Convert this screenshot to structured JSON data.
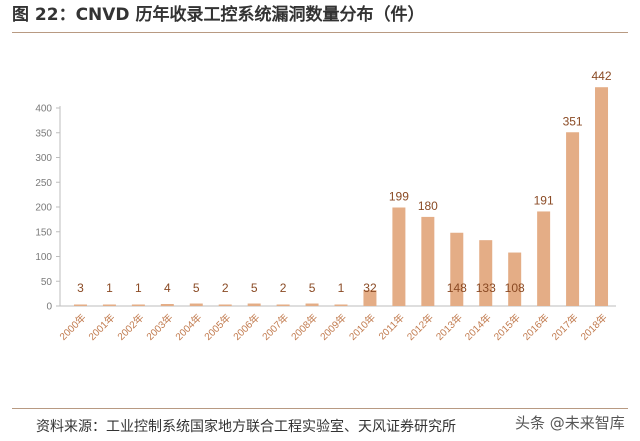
{
  "figure": {
    "title": "图 22：CNVD 历年收录工控系统漏洞数量分布（件）",
    "source": "资料来源：工业控制系统国家地方联合工程实验室、天风证券研究所",
    "watermark": "头条 @未来智库"
  },
  "chart_data": {
    "type": "bar",
    "categories": [
      "2000年",
      "2001年",
      "2002年",
      "2003年",
      "2004年",
      "2005年",
      "2006年",
      "2007年",
      "2008年",
      "2009年",
      "2010年",
      "2011年",
      "2012年",
      "2013年",
      "2014年",
      "2015年",
      "2016年",
      "2017年",
      "2018年"
    ],
    "values": [
      3,
      1,
      1,
      4,
      5,
      2,
      5,
      2,
      5,
      1,
      32,
      199,
      180,
      148,
      133,
      108,
      191,
      351,
      442
    ],
    "value_labels": [
      "3",
      "1",
      "1",
      "4",
      "5",
      "2",
      "5",
      "2",
      "5",
      "1",
      "32",
      "199",
      "180",
      "148",
      "133",
      "108",
      "191",
      "351",
      "442"
    ],
    "ylim": [
      0,
      400
    ],
    "yticks": [
      0,
      50,
      100,
      150,
      200,
      250,
      300,
      350,
      400
    ],
    "ytick_labels": [
      "0",
      "50",
      "100",
      "150",
      "200",
      "250",
      "300",
      "350",
      "400"
    ],
    "grid": false,
    "bar_color": "#e4ad86"
  }
}
